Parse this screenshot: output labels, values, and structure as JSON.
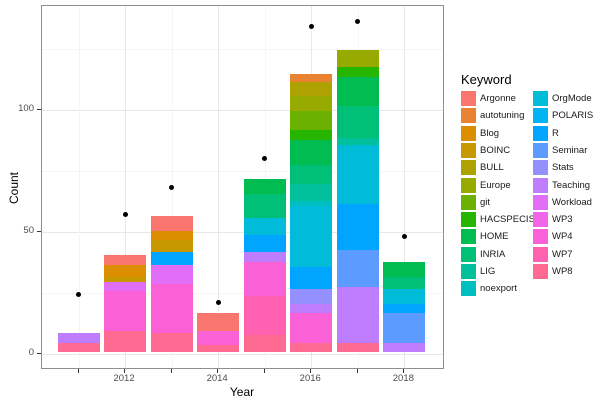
{
  "axis": {
    "x_title": "Year",
    "y_title": "Count",
    "x_tick_labels": [
      "2012",
      "2014",
      "2016",
      "2018"
    ],
    "y_tick_labels": [
      "0",
      "50",
      "100"
    ]
  },
  "legend": {
    "title": "Keyword",
    "columns": [
      [
        "Argonne",
        "autotuning",
        "Blog",
        "BOINC",
        "BULL",
        "Europe",
        "git",
        "HACSPECIS",
        "HOME",
        "INRIA",
        "LIG",
        "noexport"
      ],
      [
        "OrgMode",
        "POLARIS",
        "R",
        "Seminar",
        "Stats",
        "Teaching",
        "Workload",
        "WP3",
        "WP4",
        "WP7",
        "WP8"
      ]
    ]
  },
  "keywords": [
    {
      "name": "Argonne",
      "color": "#F8766D"
    },
    {
      "name": "autotuning",
      "color": "#EA8331"
    },
    {
      "name": "Blog",
      "color": "#DB8E00"
    },
    {
      "name": "BOINC",
      "color": "#C79800"
    },
    {
      "name": "BULL",
      "color": "#AEA200"
    },
    {
      "name": "Europe",
      "color": "#96AA00"
    },
    {
      "name": "git",
      "color": "#6BB100"
    },
    {
      "name": "HACSPECIS",
      "color": "#27B600"
    },
    {
      "name": "HOME",
      "color": "#00BC51"
    },
    {
      "name": "INRIA",
      "color": "#00C078"
    },
    {
      "name": "LIG",
      "color": "#00C19C"
    },
    {
      "name": "noexport",
      "color": "#00BFC0"
    },
    {
      "name": "OrgMode",
      "color": "#00BCD8"
    },
    {
      "name": "POLARIS",
      "color": "#00B3F2"
    },
    {
      "name": "R",
      "color": "#00A5FF"
    },
    {
      "name": "Seminar",
      "color": "#5C9BFF"
    },
    {
      "name": "Stats",
      "color": "#9590FF"
    },
    {
      "name": "Teaching",
      "color": "#BE7CFF"
    },
    {
      "name": "Workload",
      "color": "#E26EF7"
    },
    {
      "name": "WP3",
      "color": "#F166E8"
    },
    {
      "name": "WP4",
      "color": "#FB61D7"
    },
    {
      "name": "WP7",
      "color": "#FF61B0"
    },
    {
      "name": "WP8",
      "color": "#FF6A93"
    }
  ],
  "chart_data": {
    "type": "bar",
    "stacked": true,
    "title": "",
    "xlabel": "Year",
    "ylabel": "Count",
    "x_years": [
      2011,
      2012,
      2013,
      2014,
      2015,
      2016,
      2017,
      2018
    ],
    "y_axis_breaks": [
      0,
      50,
      100
    ],
    "y_axis_minor_breaks": [
      25,
      75,
      125
    ],
    "ylim": [
      0,
      140
    ],
    "grid": true,
    "legend_position": "right",
    "segments_order": "top_to_bottom",
    "bars": [
      {
        "year": 2011,
        "total": 8,
        "segments": [
          {
            "keyword": "Teaching",
            "value": 4
          },
          {
            "keyword": "WP8",
            "value": 4
          }
        ]
      },
      {
        "year": 2012,
        "total": 40,
        "segments": [
          {
            "keyword": "Argonne",
            "value": 4
          },
          {
            "keyword": "Blog",
            "value": 5
          },
          {
            "keyword": "BOINC",
            "value": 2
          },
          {
            "keyword": "Workload",
            "value": 4
          },
          {
            "keyword": "WP4",
            "value": 16
          },
          {
            "keyword": "WP8",
            "value": 9
          }
        ]
      },
      {
        "year": 2013,
        "total": 56,
        "segments": [
          {
            "keyword": "Argonne",
            "value": 6
          },
          {
            "keyword": "Blog",
            "value": 4
          },
          {
            "keyword": "BOINC",
            "value": 5
          },
          {
            "keyword": "R",
            "value": 5
          },
          {
            "keyword": "Workload",
            "value": 8
          },
          {
            "keyword": "WP4",
            "value": 20
          },
          {
            "keyword": "WP8",
            "value": 8
          }
        ]
      },
      {
        "year": 2014,
        "total": 16,
        "segments": [
          {
            "keyword": "Argonne",
            "value": 7
          },
          {
            "keyword": "WP4",
            "value": 6
          },
          {
            "keyword": "WP8",
            "value": 3
          }
        ]
      },
      {
        "year": 2015,
        "total": 71,
        "segments": [
          {
            "keyword": "HOME",
            "value": 6
          },
          {
            "keyword": "INRIA",
            "value": 10
          },
          {
            "keyword": "OrgMode",
            "value": 7
          },
          {
            "keyword": "R",
            "value": 7
          },
          {
            "keyword": "Teaching",
            "value": 4
          },
          {
            "keyword": "WP4",
            "value": 14
          },
          {
            "keyword": "WP7",
            "value": 16
          },
          {
            "keyword": "WP8",
            "value": 7
          }
        ]
      },
      {
        "year": 2016,
        "total": 114,
        "segments": [
          {
            "keyword": "autotuning",
            "value": 3
          },
          {
            "keyword": "BULL",
            "value": 6
          },
          {
            "keyword": "Europe",
            "value": 6
          },
          {
            "keyword": "git",
            "value": 8
          },
          {
            "keyword": "HACSPECIS",
            "value": 4
          },
          {
            "keyword": "HOME",
            "value": 10
          },
          {
            "keyword": "INRIA",
            "value": 8
          },
          {
            "keyword": "LIG",
            "value": 7
          },
          {
            "keyword": "noexport",
            "value": 2
          },
          {
            "keyword": "OrgMode",
            "value": 25
          },
          {
            "keyword": "R",
            "value": 9
          },
          {
            "keyword": "Stats",
            "value": 6
          },
          {
            "keyword": "Teaching",
            "value": 4
          },
          {
            "keyword": "WP4",
            "value": 12
          },
          {
            "keyword": "WP8",
            "value": 4
          }
        ]
      },
      {
        "year": 2017,
        "total": 124,
        "segments": [
          {
            "keyword": "Europe",
            "value": 7
          },
          {
            "keyword": "HACSPECIS",
            "value": 4
          },
          {
            "keyword": "HOME",
            "value": 12
          },
          {
            "keyword": "INRIA",
            "value": 13
          },
          {
            "keyword": "LIG",
            "value": 3
          },
          {
            "keyword": "OrgMode",
            "value": 24
          },
          {
            "keyword": "R",
            "value": 19
          },
          {
            "keyword": "Seminar",
            "value": 15
          },
          {
            "keyword": "Teaching",
            "value": 23
          },
          {
            "keyword": "WP8",
            "value": 4
          }
        ]
      },
      {
        "year": 2018,
        "total": 37,
        "segments": [
          {
            "keyword": "HOME",
            "value": 6
          },
          {
            "keyword": "INRIA",
            "value": 5
          },
          {
            "keyword": "OrgMode",
            "value": 6
          },
          {
            "keyword": "R",
            "value": 4
          },
          {
            "keyword": "Seminar",
            "value": 12
          },
          {
            "keyword": "Teaching",
            "value": 4
          }
        ]
      }
    ],
    "points": [
      {
        "year": 2011,
        "value": 24
      },
      {
        "year": 2012,
        "value": 57
      },
      {
        "year": 2013,
        "value": 68
      },
      {
        "year": 2014,
        "value": 21
      },
      {
        "year": 2015,
        "value": 80
      },
      {
        "year": 2016,
        "value": 134
      },
      {
        "year": 2017,
        "value": 136
      },
      {
        "year": 2018,
        "value": 48
      }
    ]
  }
}
